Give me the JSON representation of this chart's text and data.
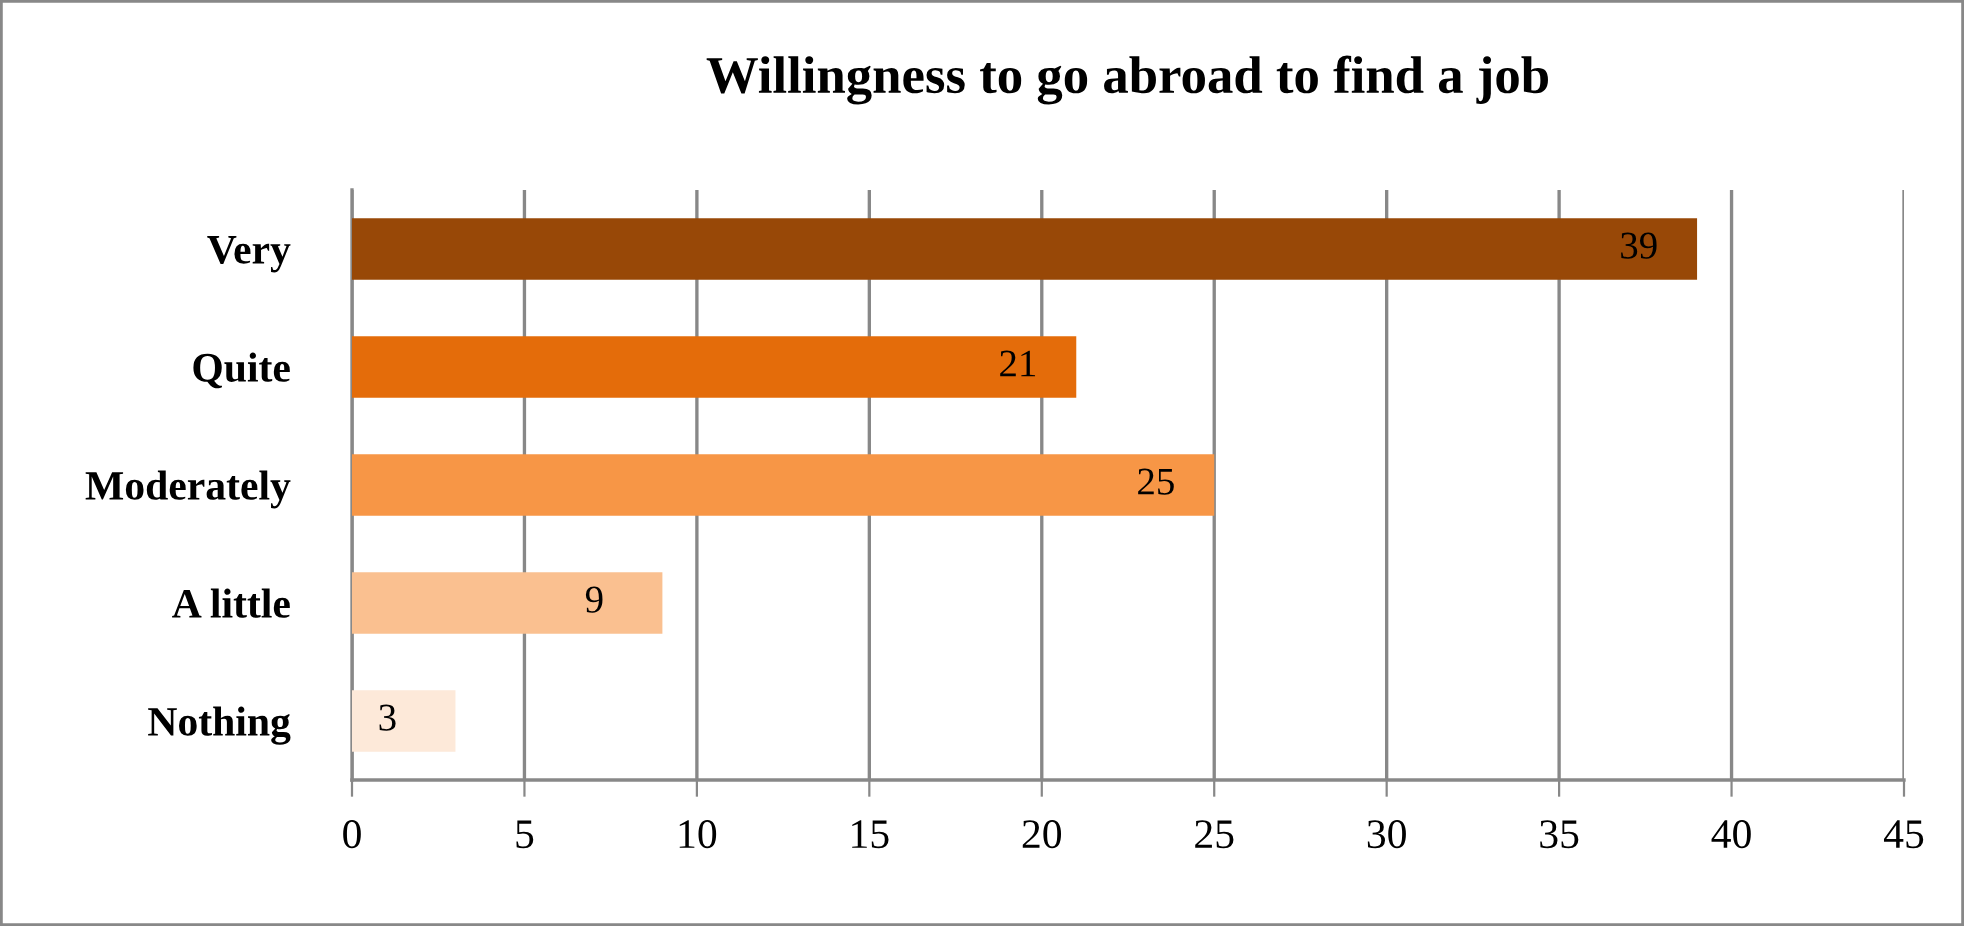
{
  "chart_data": {
    "type": "bar",
    "orientation": "horizontal",
    "title": "Willingness to go abroad to find a job",
    "categories": [
      "Very",
      "Quite",
      "Moderately",
      "A little",
      "Nothing"
    ],
    "values": [
      39,
      21,
      25,
      9,
      3
    ],
    "colors": [
      "#984807",
      "#e46c0a",
      "#f79646",
      "#fac090",
      "#fde9d9"
    ],
    "xlim": [
      0,
      45
    ],
    "xticks": [
      0,
      5,
      10,
      15,
      20,
      25,
      30,
      35,
      40,
      45
    ],
    "grid": "x",
    "data_labels": true
  }
}
